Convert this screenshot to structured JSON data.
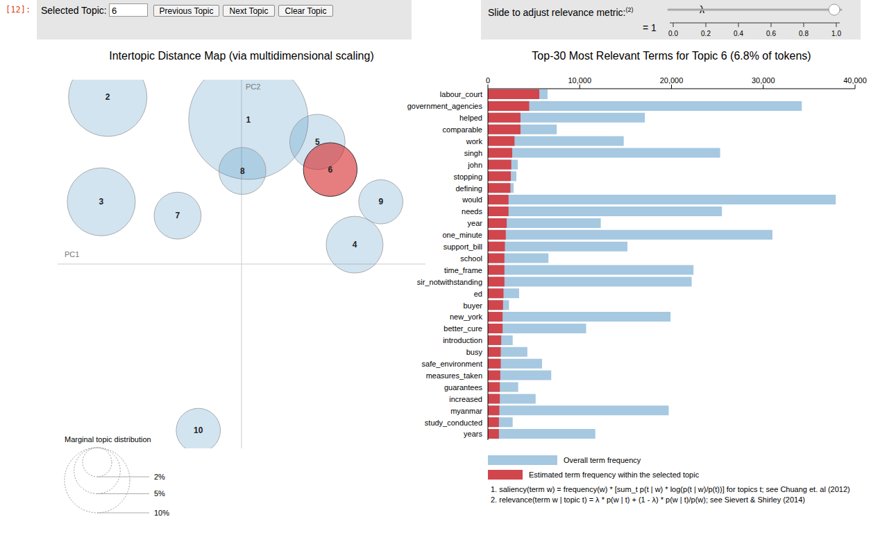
{
  "notebook_prompt": "[12]:",
  "topic_selector": {
    "label": "Selected Topic:",
    "value": "6",
    "buttons": [
      "Previous Topic",
      "Next Topic",
      "Clear Topic"
    ]
  },
  "relevance_slider": {
    "label": "Slide to adjust relevance metric:",
    "note": "(2)",
    "symbol": "λ",
    "value_text": "= 1",
    "value": 1,
    "ticks": [
      {
        "value": 0,
        "label": "0.0"
      },
      {
        "value": 0.2,
        "label": "0.2"
      },
      {
        "value": 0.4,
        "label": "0.4"
      },
      {
        "value": 0.6,
        "label": "0.6"
      },
      {
        "value": 0.8,
        "label": "0.8"
      },
      {
        "value": 1,
        "label": "1.0"
      }
    ]
  },
  "footnotes": [
    "1. saliency(term w) = frequency(w) * [sum_t p(t | w) * log(p(t | w)/p(t))] for topics t; see Chuang et. al (2012)",
    "2. relevance(term w | topic t) = λ * p(w | t) + (1 - λ) * p(w | t)/p(w); see Sievert & Shirley (2014)"
  ],
  "chart_data": [
    {
      "type": "scatter",
      "title": "Intertopic Distance Map (via multidimensional scaling)",
      "x_label": "PC1",
      "y_label": "PC2",
      "tick_labels": false,
      "labels": [
        "1",
        "2",
        "3",
        "4",
        "5",
        "6",
        "7",
        "8",
        "9",
        "10"
      ],
      "x": [
        0.015,
        -0.291,
        -0.305,
        0.246,
        0.165,
        0.193,
        -0.139,
        0.002,
        0.303,
        -0.094
      ],
      "values": [
        0.313,
        0.362,
        0.135,
        0.042,
        0.265,
        0.205,
        0.105,
        0.202,
        0.135,
        -0.361
      ],
      "sizes": [
        33.5,
        14.5,
        10.9,
        7.6,
        7.2,
        6.8,
        5.2,
        5.2,
        4.6,
        4.6
      ],
      "colors": [
        "#1f77b4",
        "#1f77b4",
        "#1f77b4",
        "#1f77b4",
        "#1f77b4",
        "#d62728",
        "#1f77b4",
        "#1f77b4",
        "#1f77b4",
        "#1f77b4"
      ],
      "xlim": [
        -0.4,
        0.4
      ],
      "ylim": [
        -0.4,
        0.4
      ],
      "size_legend": {
        "title": "Marginal topic distribution",
        "values": [
          {
            "value": 2,
            "label": "2%"
          },
          {
            "value": 5,
            "label": "5%"
          },
          {
            "value": 10,
            "label": "10%"
          }
        ]
      }
    },
    {
      "type": "bar",
      "orientation": "horizontal",
      "stacked": false,
      "title": "Top-30 Most Relevant Terms for Topic 6 (6.8% of tokens)",
      "categories": [
        "labour_court",
        "government_agencies",
        "helped",
        "comparable",
        "work",
        "singh",
        "john",
        "stopping",
        "defining",
        "would",
        "needs",
        "year",
        "one_minute",
        "support_bill",
        "school",
        "time_frame",
        "sir_notwithstanding",
        "ed",
        "buyer",
        "new_york",
        "better_cure",
        "introduction",
        "busy",
        "safe_environment",
        "measures_taken",
        "guarantees",
        "increased",
        "myanmar",
        "study_conducted",
        "years"
      ],
      "series": [
        {
          "name": "Overall term frequency",
          "color": "#a6c8e1",
          "values": [
            6500,
            34200,
            17100,
            7500,
            14800,
            25300,
            3250,
            3100,
            2800,
            37900,
            25500,
            12300,
            31000,
            15200,
            6600,
            22400,
            22200,
            3400,
            2300,
            19900,
            10700,
            2700,
            4300,
            5900,
            6900,
            3300,
            5200,
            19700,
            2700,
            11700
          ]
        },
        {
          "name": "Estimated term frequency within the selected topic",
          "color": "#d0464c",
          "values": [
            5600,
            4500,
            3550,
            3550,
            2900,
            2650,
            2550,
            2500,
            2450,
            2250,
            2250,
            2050,
            1950,
            1850,
            1800,
            1800,
            1800,
            1700,
            1650,
            1600,
            1600,
            1450,
            1400,
            1400,
            1350,
            1300,
            1300,
            1250,
            1200,
            1200
          ]
        }
      ],
      "xlim": [
        0,
        40000
      ],
      "xticks": [
        0,
        {
          "value": 10000,
          "label": "10,000"
        },
        {
          "value": 20000,
          "label": "20,000"
        },
        {
          "value": 30000,
          "label": "30,000"
        },
        {
          "value": 40000,
          "label": "40,000"
        }
      ]
    }
  ]
}
